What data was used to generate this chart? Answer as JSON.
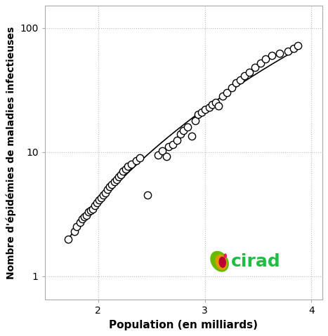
{
  "scatter_x": [
    1.72,
    1.78,
    1.8,
    1.83,
    1.85,
    1.87,
    1.89,
    1.91,
    1.93,
    1.95,
    1.97,
    1.99,
    2.01,
    2.03,
    2.05,
    2.07,
    2.09,
    2.11,
    2.13,
    2.15,
    2.17,
    2.19,
    2.21,
    2.23,
    2.26,
    2.28,
    2.31,
    2.36,
    2.39,
    2.46,
    2.56,
    2.6,
    2.64,
    2.66,
    2.7,
    2.74,
    2.77,
    2.8,
    2.84,
    2.88,
    2.91,
    2.94,
    2.97,
    3.0,
    3.04,
    3.07,
    3.1,
    3.13,
    3.17,
    3.21,
    3.25,
    3.29,
    3.33,
    3.37,
    3.42,
    3.47,
    3.52,
    3.57,
    3.63,
    3.7,
    3.78,
    3.83,
    3.87
  ],
  "scatter_y": [
    2.0,
    2.3,
    2.5,
    2.7,
    2.9,
    3.0,
    3.1,
    3.3,
    3.4,
    3.5,
    3.7,
    3.9,
    4.1,
    4.3,
    4.5,
    4.7,
    5.0,
    5.3,
    5.5,
    5.8,
    6.0,
    6.3,
    6.6,
    7.0,
    7.3,
    7.7,
    8.0,
    8.5,
    9.0,
    4.5,
    9.5,
    10.2,
    9.2,
    11.0,
    11.5,
    12.5,
    14.0,
    15.0,
    16.0,
    13.5,
    18.0,
    20.0,
    21.0,
    22.0,
    23.0,
    24.0,
    25.0,
    23.5,
    28.0,
    30.0,
    33.0,
    36.0,
    38.0,
    41.0,
    44.0,
    48.0,
    52.0,
    56.0,
    60.0,
    62.0,
    65.0,
    68.0,
    72.0
  ],
  "xlabel": "Population (en milliards)",
  "ylabel": "Nombre d'épidémies de maladies infectieuses",
  "xlim": [
    1.5,
    4.1
  ],
  "ylim_log": [
    0.65,
    150
  ],
  "xticks": [
    2,
    3,
    4
  ],
  "yticks": [
    1,
    10,
    100
  ],
  "yticklabels": [
    "1",
    "10",
    "100"
  ],
  "marker_color": "black",
  "marker_facecolor": "white",
  "marker_size": 55,
  "line_color": "black",
  "line_width": 1.2,
  "bg_color": "#ffffff",
  "grid_color": "#bbbbbb",
  "cirad_text": "cirad",
  "cirad_text_color": "#22bb44",
  "xlabel_fontsize": 11,
  "ylabel_fontsize": 10,
  "tick_fontsize": 10
}
